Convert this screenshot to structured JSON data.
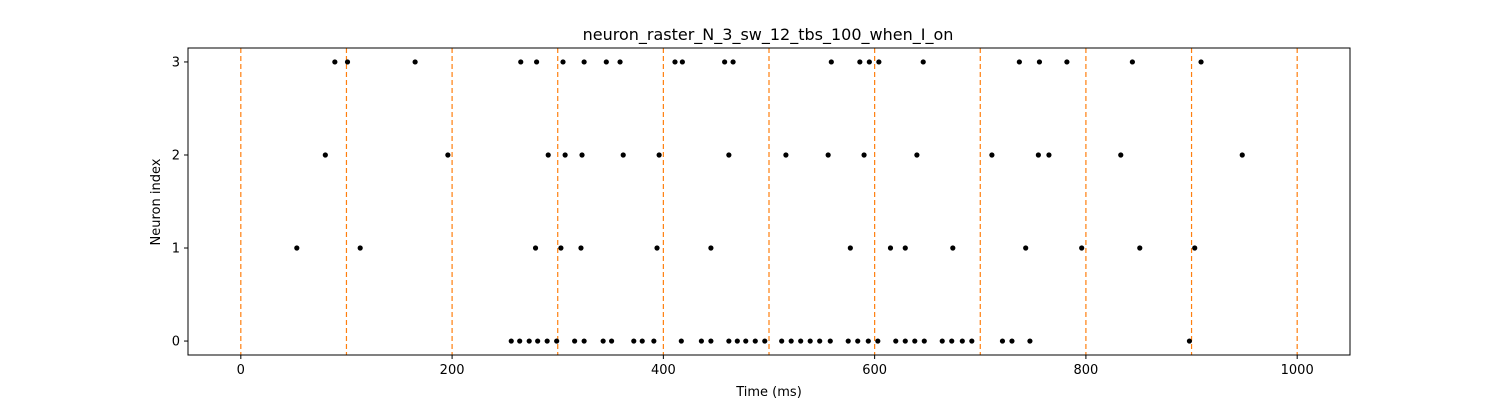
{
  "chart_data": {
    "type": "scatter",
    "title": "neuron_raster_N_3_sw_12_tbs_100_when_I_on",
    "xlabel": "Time (ms)",
    "ylabel": "Neuron index",
    "xlim": [
      -50,
      1050
    ],
    "ylim": [
      -0.15,
      3.15
    ],
    "xticks": [
      0,
      200,
      400,
      600,
      800,
      1000
    ],
    "yticks": [
      0,
      1,
      2,
      3
    ],
    "grid": false,
    "marker_color": "#000000",
    "vline_color": "#ff7f0e",
    "vlines": [
      0,
      100,
      200,
      300,
      400,
      500,
      600,
      700,
      800,
      900,
      1000
    ],
    "series": [
      {
        "neuron": 0,
        "x": [
          256,
          264,
          273,
          281,
          290,
          299,
          316,
          325,
          343,
          351,
          372,
          380,
          391,
          417,
          436,
          445,
          462,
          470,
          478,
          487,
          496,
          512,
          521,
          530,
          539,
          548,
          558,
          575,
          584,
          594,
          603,
          620,
          629,
          638,
          647,
          664,
          673,
          683,
          692,
          721,
          730,
          747,
          898
        ]
      },
      {
        "neuron": 1,
        "x": [
          53,
          113,
          279,
          303,
          322,
          394,
          445,
          577,
          615,
          629,
          674,
          743,
          796,
          851,
          903
        ]
      },
      {
        "neuron": 2,
        "x": [
          80,
          196,
          291,
          307,
          323,
          362,
          396,
          462,
          516,
          556,
          590,
          640,
          711,
          755,
          765,
          833,
          948
        ]
      },
      {
        "neuron": 3,
        "x": [
          89,
          101,
          165,
          265,
          280,
          305,
          325,
          346,
          359,
          411,
          418,
          458,
          466,
          559,
          586,
          595,
          604,
          646,
          737,
          756,
          782,
          844,
          909
        ]
      }
    ]
  }
}
